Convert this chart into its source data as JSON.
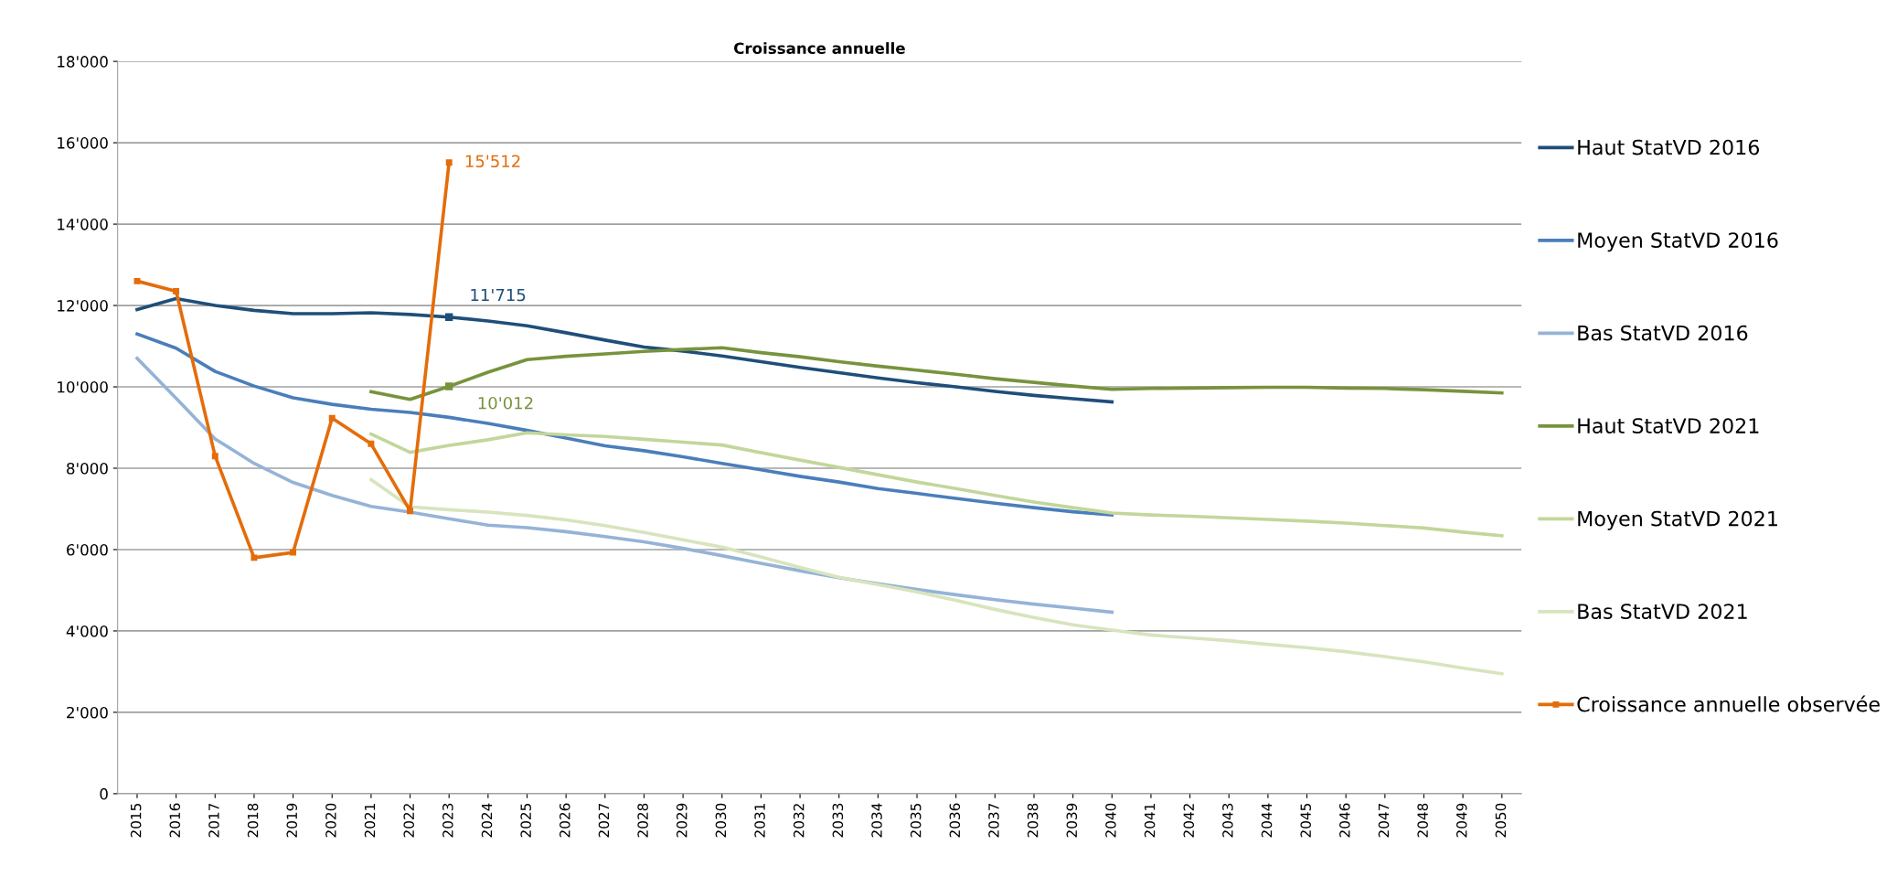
{
  "chart_data": {
    "type": "line",
    "title": "Croissance annuelle",
    "categories": [
      "2015",
      "2016",
      "2017",
      "2018",
      "2019",
      "2020",
      "2021",
      "2022",
      "2023",
      "2024",
      "2025",
      "2026",
      "2027",
      "2028",
      "2029",
      "2030",
      "2031",
      "2032",
      "2033",
      "2034",
      "2035",
      "2036",
      "2037",
      "2038",
      "2039",
      "2040",
      "2041",
      "2042",
      "2043",
      "2044",
      "2045",
      "2046",
      "2047",
      "2048",
      "2049",
      "2050"
    ],
    "ylim": [
      0,
      18000
    ],
    "yticks": [
      0,
      {
        "value": 2000,
        "label": "2'000"
      },
      {
        "value": 4000,
        "label": "4'000"
      },
      {
        "value": 6000,
        "label": "6'000"
      },
      {
        "value": 8000,
        "label": "8'000"
      },
      {
        "value": 10000,
        "label": "10'000"
      },
      {
        "value": 12000,
        "label": "12'000"
      },
      {
        "value": 14000,
        "label": "14'000"
      },
      {
        "value": 16000,
        "label": "16'000"
      },
      {
        "value": 18000,
        "label": "18'000"
      }
    ],
    "grid": "y",
    "legend": "right",
    "marker": "none",
    "line_style": "solid",
    "series": [
      {
        "name": "Haut StatVD 2016",
        "color": "#1f4e79",
        "values": [
          11900,
          12170,
          12000,
          11880,
          11800,
          11800,
          11820,
          11780,
          11715,
          11620,
          11500,
          11330,
          11150,
          10980,
          10880,
          10760,
          10620,
          10480,
          10350,
          10220,
          10100,
          10000,
          9890,
          9790,
          9710,
          9630,
          null,
          null,
          null,
          null,
          null,
          null,
          null,
          null,
          null,
          null
        ],
        "value_labels": [
          null,
          null,
          null,
          null,
          null,
          null,
          null,
          null,
          "11'715",
          null,
          null,
          null,
          null,
          null,
          null,
          null,
          null,
          null,
          null,
          null,
          null,
          null,
          null,
          null,
          null,
          null,
          null,
          null,
          null,
          null,
          null,
          null,
          null,
          null,
          null,
          null
        ]
      },
      {
        "name": "Moyen StatVD 2016",
        "color": "#4a7ebb",
        "values": [
          11300,
          10950,
          10380,
          10020,
          9730,
          9570,
          9450,
          9370,
          9250,
          9100,
          8930,
          8740,
          8550,
          8430,
          8280,
          8120,
          7960,
          7800,
          7660,
          7500,
          7380,
          7260,
          7140,
          7030,
          6930,
          6850,
          null,
          null,
          null,
          null,
          null,
          null,
          null,
          null,
          null,
          null
        ]
      },
      {
        "name": "Bas StatVD 2016",
        "color": "#95b3d7",
        "values": [
          10700,
          9720,
          8720,
          8120,
          7650,
          7330,
          7060,
          6920,
          6760,
          6600,
          6540,
          6440,
          6320,
          6190,
          6030,
          5850,
          5660,
          5480,
          5310,
          5160,
          5020,
          4890,
          4770,
          4660,
          4560,
          4460,
          null,
          null,
          null,
          null,
          null,
          null,
          null,
          null,
          null,
          null
        ]
      },
      {
        "name": "Haut StatVD 2021",
        "color": "#77933c",
        "values": [
          null,
          null,
          null,
          null,
          null,
          null,
          9880,
          9690,
          10012,
          10360,
          10670,
          10750,
          10810,
          10870,
          10920,
          10960,
          10840,
          10740,
          10620,
          10510,
          10410,
          10310,
          10200,
          10110,
          10020,
          9940,
          9960,
          9970,
          9980,
          9990,
          9990,
          9970,
          9960,
          9930,
          9890,
          9850
        ],
        "value_labels": [
          null,
          null,
          null,
          null,
          null,
          null,
          null,
          null,
          "10'012",
          null,
          null,
          null,
          null,
          null,
          null,
          null,
          null,
          null,
          null,
          null,
          null,
          null,
          null,
          null,
          null,
          null,
          null,
          null,
          null,
          null,
          null,
          null,
          null,
          null,
          null,
          null
        ]
      },
      {
        "name": "Moyen StatVD 2021",
        "color": "#c3d69b",
        "values": [
          null,
          null,
          null,
          null,
          null,
          null,
          8840,
          8390,
          8560,
          8700,
          8870,
          8820,
          8780,
          8710,
          8640,
          8570,
          8380,
          8200,
          8020,
          7840,
          7660,
          7500,
          7330,
          7170,
          7030,
          6900,
          6850,
          6820,
          6780,
          6740,
          6700,
          6650,
          6590,
          6530,
          6430,
          6340
        ]
      },
      {
        "name": "Bas StatVD 2021",
        "color": "#d7e4bd",
        "values": [
          null,
          null,
          null,
          null,
          null,
          null,
          7720,
          7050,
          6980,
          6920,
          6840,
          6730,
          6590,
          6420,
          6240,
          6060,
          5820,
          5560,
          5320,
          5140,
          4960,
          4750,
          4530,
          4330,
          4150,
          4020,
          3900,
          3830,
          3760,
          3670,
          3590,
          3490,
          3370,
          3240,
          3090,
          2950
        ]
      },
      {
        "name": "Croissance annuelle observée",
        "color": "#e46c0a",
        "marker": "square",
        "values": [
          12600,
          12350,
          8300,
          5800,
          5930,
          9230,
          8600,
          6950,
          15512,
          null,
          null,
          null,
          null,
          null,
          null,
          null,
          null,
          null,
          null,
          null,
          null,
          null,
          null,
          null,
          null,
          null,
          null,
          null,
          null,
          null,
          null,
          null,
          null,
          null,
          null,
          null
        ],
        "value_labels": [
          null,
          null,
          null,
          null,
          null,
          null,
          null,
          null,
          "15'512",
          null,
          null,
          null,
          null,
          null,
          null,
          null,
          null,
          null,
          null,
          null,
          null,
          null,
          null,
          null,
          null,
          null,
          null,
          null,
          null,
          null,
          null,
          null,
          null,
          null,
          null,
          null
        ]
      }
    ]
  }
}
